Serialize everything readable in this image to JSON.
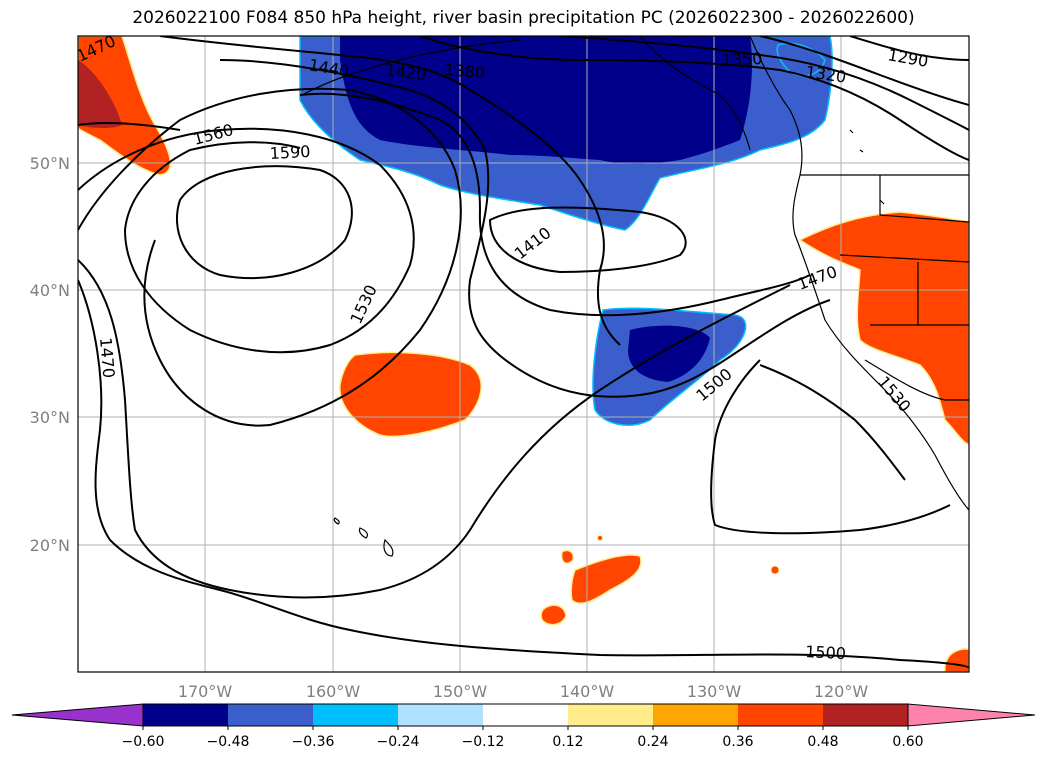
{
  "title": "2026022100 F084 850 hPa height, river basin precipitation PC (2026022300 - 2026022600)",
  "map": {
    "lon_ticks": [
      "170°W",
      "160°W",
      "150°W",
      "140°W",
      "130°W",
      "120°W"
    ],
    "lat_ticks": [
      "50°N",
      "40°N",
      "30°N",
      "20°N"
    ],
    "contour_labels": [
      "1470",
      "1440",
      "1420",
      "1380",
      "1350",
      "1320",
      "1290",
      "1560",
      "1590",
      "1410",
      "1530",
      "1470",
      "1500",
      "1470",
      "1530",
      "1500"
    ]
  },
  "colorbar": {
    "ticks": [
      "−0.60",
      "−0.48",
      "−0.36",
      "−0.24",
      "−0.12",
      "0.12",
      "0.24",
      "0.36",
      "0.48",
      "0.60"
    ],
    "colors": [
      "#9932cc",
      "#00008b",
      "#3a5fcd",
      "#00bfff",
      "#b0e2ff",
      "#ffffff",
      "#ffec8b",
      "#ffa500",
      "#ff4500",
      "#b22222",
      "#ff82ab"
    ]
  }
}
